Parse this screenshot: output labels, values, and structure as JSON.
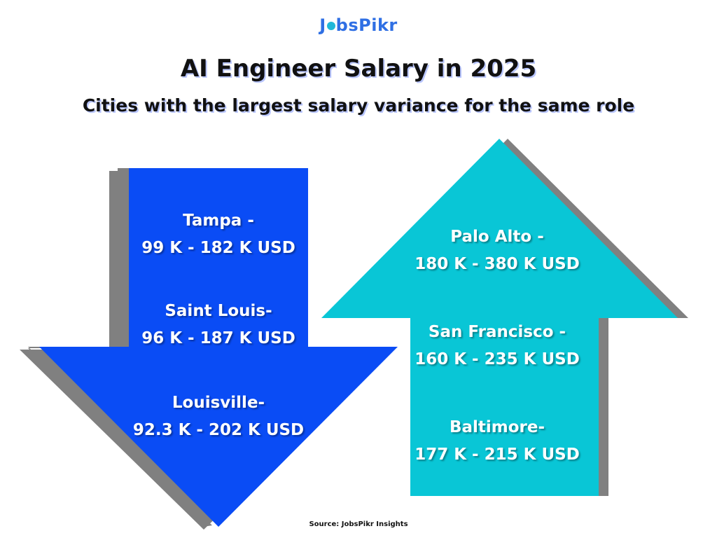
{
  "brand": {
    "logo_text": "JobsPikr",
    "logo_left": "J",
    "logo_right": "bsPikr"
  },
  "header": {
    "title": "AI Engineer Salary in 2025",
    "subtitle": "Cities with the largest salary variance for the same role"
  },
  "colors": {
    "down_arrow": "#0a4cf5",
    "up_arrow": "#09c6d6",
    "shadow": "#808080"
  },
  "down_arrow": {
    "icon": "arrow-down-icon",
    "items": [
      {
        "city": "Tampa -",
        "range": "99 K - 182 K USD"
      },
      {
        "city": "Saint Louis-",
        "range": "96 K - 187 K USD"
      },
      {
        "city": "Louisville-",
        "range": "92.3 K - 202 K USD"
      }
    ]
  },
  "up_arrow": {
    "icon": "arrow-up-icon",
    "items": [
      {
        "city": "Palo Alto -",
        "range": "180 K - 380 K USD"
      },
      {
        "city": "San Francisco -",
        "range": "160 K - 235 K USD"
      },
      {
        "city": "Baltimore-",
        "range": "177 K - 215 K USD"
      }
    ]
  },
  "footer": {
    "source": "Source: JobsPikr Insights"
  }
}
